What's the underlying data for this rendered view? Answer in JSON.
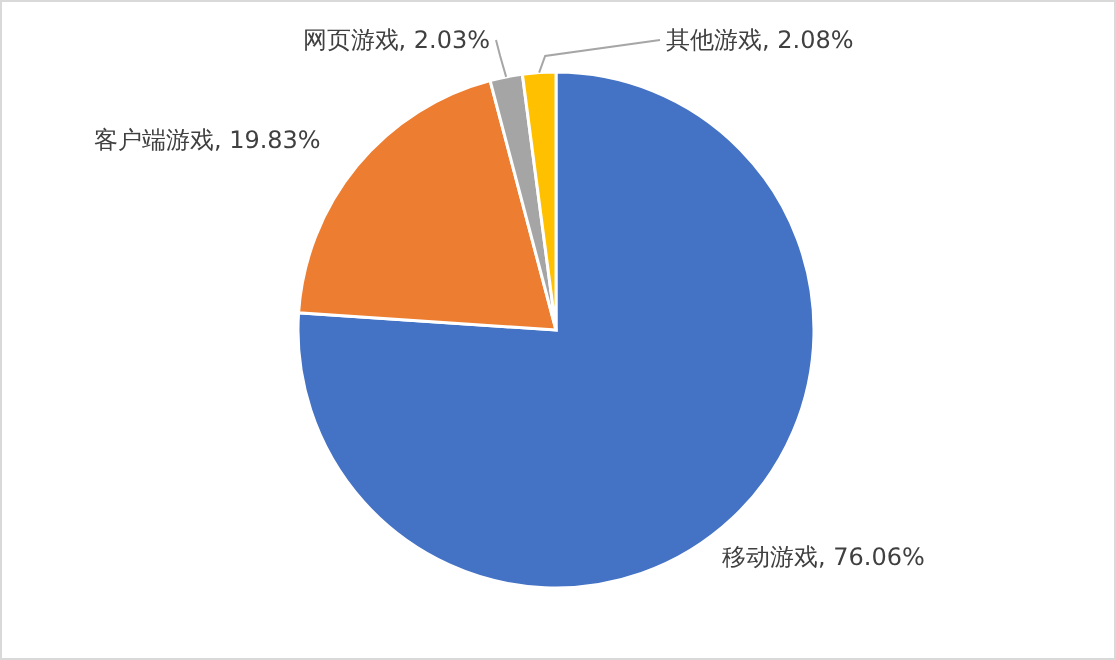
{
  "chart_data": {
    "type": "pie",
    "categories": [
      "移动游戏",
      "客户端游戏",
      "网页游戏",
      "其他游戏"
    ],
    "values": [
      76.06,
      19.83,
      2.03,
      2.08
    ],
    "colors": [
      "#4472c4",
      "#ed7d31",
      "#a5a5a5",
      "#ffc000"
    ],
    "value_labels": [
      ", 76.06%",
      ", 19.83%",
      ", 2.03%",
      ", 2.08%"
    ],
    "legend": false
  }
}
